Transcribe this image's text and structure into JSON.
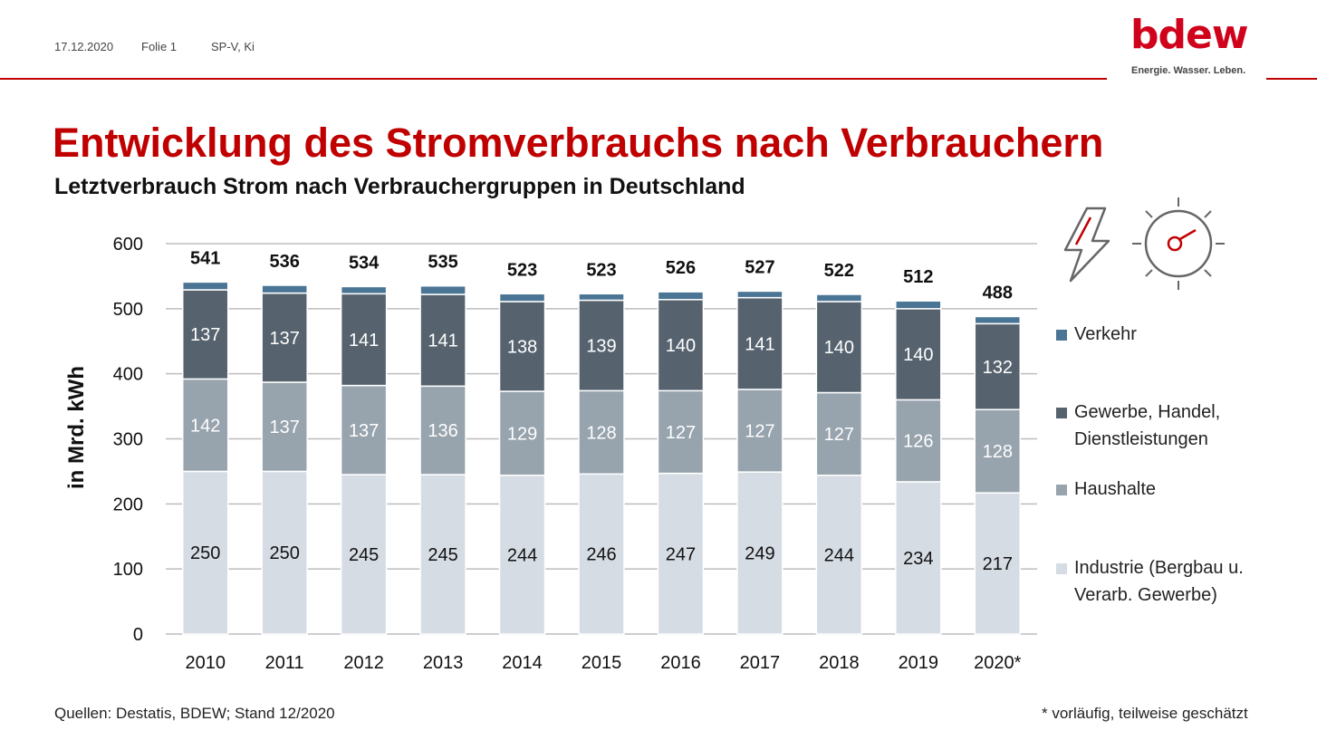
{
  "header": {
    "date": "17.12.2020",
    "slide": "Folie 1",
    "author": "SP-V, Ki",
    "logo_text": "bdew",
    "logo_tagline": "Energie. Wasser. Leben."
  },
  "title": "Entwicklung des Stromverbrauchs nach Verbrauchern",
  "subtitle": "Letztverbrauch Strom nach Verbrauchergruppen in Deutschland",
  "icons": [
    "lightning-icon",
    "gauge-icon"
  ],
  "footer": {
    "source": "Quellen: Destatis, BDEW; Stand 12/2020",
    "note": "* vorläufig, teilweise geschätzt"
  },
  "colors": {
    "accent": "#c00000",
    "industrie": "#d6dce4",
    "haushalte": "#97a3ad",
    "gewerbe": "#56636f",
    "verkehr": "#4a7594"
  },
  "chart_data": {
    "type": "bar",
    "stacked": true,
    "ylabel": "in Mrd. kWh",
    "ylim": [
      0,
      600
    ],
    "yticks": [
      0,
      100,
      200,
      300,
      400,
      500,
      600
    ],
    "grid": true,
    "legend_position": "right",
    "categories": [
      "2010",
      "2011",
      "2012",
      "2013",
      "2014",
      "2015",
      "2016",
      "2017",
      "2018",
      "2019",
      "2020*"
    ],
    "totals": [
      541,
      536,
      534,
      535,
      523,
      523,
      526,
      527,
      522,
      512,
      488
    ],
    "series": [
      {
        "name": "Industrie (Bergbau u. Verarb. Gewerbe)",
        "color_key": "industrie",
        "values": [
          250,
          250,
          245,
          245,
          244,
          246,
          247,
          249,
          244,
          234,
          217
        ]
      },
      {
        "name": "Haushalte",
        "color_key": "haushalte",
        "values": [
          142,
          137,
          137,
          136,
          129,
          128,
          127,
          127,
          127,
          126,
          128
        ]
      },
      {
        "name": "Gewerbe, Handel, Dienstleistungen",
        "color_key": "gewerbe",
        "values": [
          137,
          137,
          141,
          141,
          138,
          139,
          140,
          141,
          140,
          140,
          132
        ]
      },
      {
        "name": "Verkehr",
        "color_key": "verkehr",
        "values": [
          12,
          12,
          11,
          13,
          12,
          10,
          12,
          10,
          11,
          12,
          11
        ]
      }
    ],
    "legend": [
      {
        "text": "Verkehr",
        "color_key": "verkehr"
      },
      {
        "text": "Gewerbe, Handel, Dienstleistungen",
        "color_key": "gewerbe"
      },
      {
        "text": "Haushalte",
        "color_key": "haushalte"
      },
      {
        "text": "Industrie (Bergbau u. Verarb. Gewerbe)",
        "color_key": "industrie"
      }
    ]
  }
}
